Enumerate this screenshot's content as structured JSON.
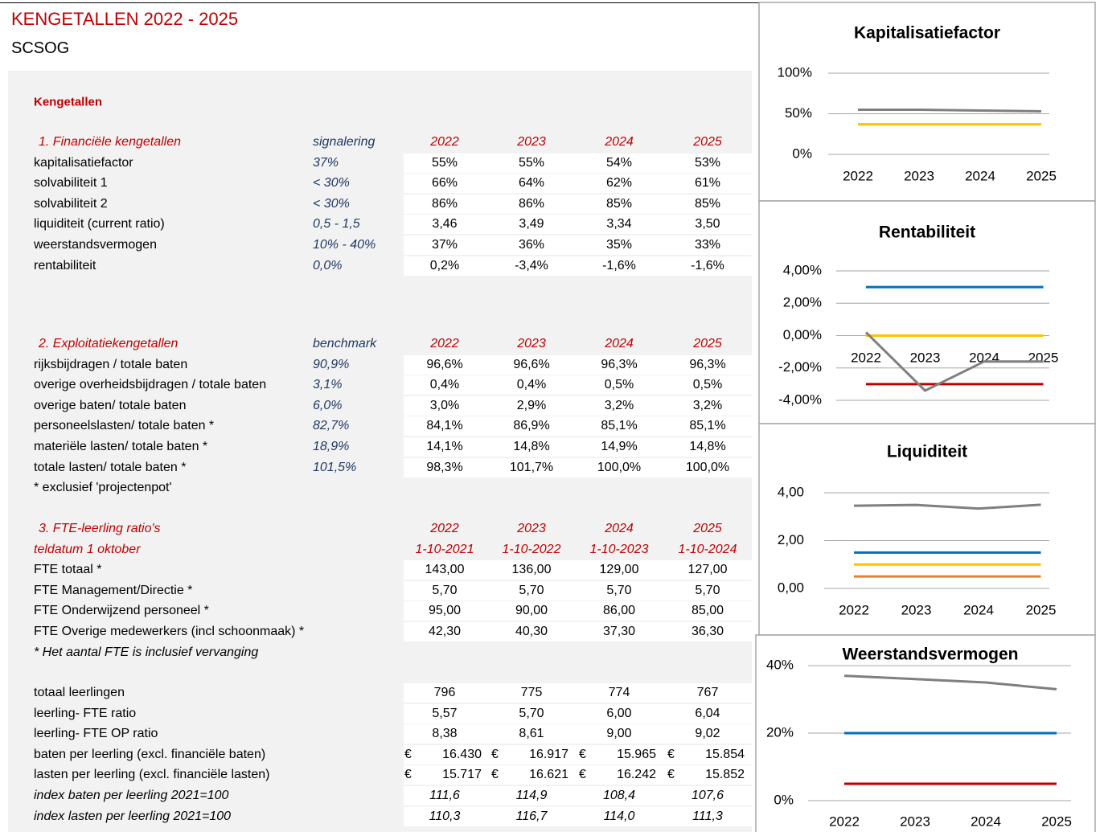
{
  "header": {
    "title": "KENGETALLEN  2022 - 2025",
    "subtitle": "SCSOG",
    "section_label": "Kengetallen"
  },
  "sections": [
    {
      "heading": "1. Financiële kengetallen",
      "column_label": "signalering",
      "years": [
        "2022",
        "2023",
        "2024",
        "2025"
      ],
      "rows": [
        {
          "label": "kapitalisatiefactor",
          "signal": "37%",
          "values": [
            "55%",
            "55%",
            "54%",
            "53%"
          ]
        },
        {
          "label": "solvabiliteit 1",
          "signal": "< 30%",
          "values": [
            "66%",
            "64%",
            "62%",
            "61%"
          ]
        },
        {
          "label": "solvabiliteit 2",
          "signal": "< 30%",
          "values": [
            "86%",
            "86%",
            "85%",
            "85%"
          ]
        },
        {
          "label": "liquiditeit (current ratio)",
          "signal": "0,5 - 1,5",
          "values": [
            "3,46",
            "3,49",
            "3,34",
            "3,50"
          ]
        },
        {
          "label": "weerstandsvermogen",
          "signal": "10% - 40%",
          "values": [
            "37%",
            "36%",
            "35%",
            "33%"
          ]
        },
        {
          "label": "rentabiliteit",
          "signal": "0,0%",
          "values": [
            "0,2%",
            "-3,4%",
            "-1,6%",
            "-1,6%"
          ]
        }
      ]
    },
    {
      "heading": "2. Exploitatiekengetallen",
      "column_label": "benchmark",
      "years": [
        "2022",
        "2023",
        "2024",
        "2025"
      ],
      "rows": [
        {
          "label": "rijksbijdragen / totale baten",
          "signal": "90,9%",
          "values": [
            "96,6%",
            "96,6%",
            "96,3%",
            "96,3%"
          ]
        },
        {
          "label": "overige overheidsbijdragen / totale baten",
          "signal": "3,1%",
          "values": [
            "0,4%",
            "0,4%",
            "0,5%",
            "0,5%"
          ]
        },
        {
          "label": "overige baten/ totale baten",
          "signal": "6,0%",
          "values": [
            "3,0%",
            "2,9%",
            "3,2%",
            "3,2%"
          ]
        },
        {
          "label": "personeelslasten/ totale baten *",
          "signal": "82,7%",
          "values": [
            "84,1%",
            "86,9%",
            "85,1%",
            "85,1%"
          ]
        },
        {
          "label": "materiële lasten/ totale baten *",
          "signal": "18,9%",
          "values": [
            "14,1%",
            "14,8%",
            "14,9%",
            "14,8%"
          ]
        },
        {
          "label": "totale lasten/ totale baten *",
          "signal": "101,5%",
          "values": [
            "98,3%",
            "101,7%",
            "100,0%",
            "100,0%"
          ]
        }
      ],
      "note": "* exclusief 'projectenpot'"
    },
    {
      "heading": "3. FTE-leerling ratio's",
      "subheading": "teldatum 1 oktober",
      "years": [
        "2022",
        "2023",
        "2024",
        "2025"
      ],
      "dates": [
        "1-10-2021",
        "1-10-2022",
        "1-10-2023",
        "1-10-2024"
      ],
      "rows": [
        {
          "label": "FTE totaal *",
          "values": [
            "143,00",
            "136,00",
            "129,00",
            "127,00"
          ]
        },
        {
          "label": "FTE Management/Directie *",
          "values": [
            "5,70",
            "5,70",
            "5,70",
            "5,70"
          ]
        },
        {
          "label": "FTE Onderwijzend personeel *",
          "values": [
            "95,00",
            "90,00",
            "86,00",
            "85,00"
          ]
        },
        {
          "label": "FTE Overige medewerkers (incl schoonmaak) *",
          "values": [
            "42,30",
            "40,30",
            "37,30",
            "36,30"
          ]
        }
      ],
      "note": "* Het aantal FTE is inclusief vervanging"
    },
    {
      "rows": [
        {
          "label": "totaal leerlingen",
          "values": [
            "796",
            "775",
            "774",
            "767"
          ]
        },
        {
          "label": "leerling- FTE ratio",
          "values": [
            "5,57",
            "5,70",
            "6,00",
            "6,04"
          ]
        },
        {
          "label": "leerling- FTE OP ratio",
          "values": [
            "8,38",
            "8,61",
            "9,00",
            "9,02"
          ]
        },
        {
          "label": "baten per leerling (excl. financiële baten)",
          "currency": "€",
          "values": [
            "16.430",
            "16.917",
            "15.965",
            "15.854"
          ]
        },
        {
          "label": "lasten per leerling (excl. financiële lasten)",
          "currency": "€",
          "values": [
            "15.717",
            "16.621",
            "16.242",
            "15.852"
          ]
        },
        {
          "label": "index baten per leerling 2021=100",
          "values": [
            "111,6",
            "114,9",
            "108,4",
            "107,6"
          ]
        },
        {
          "label": "index lasten per leerling 2021=100",
          "values": [
            "110,3",
            "116,7",
            "114,0",
            "111,3"
          ]
        }
      ]
    }
  ],
  "charts": [
    {
      "type": "line",
      "title": "Kapitalisatiefactor",
      "categories": [
        "2022",
        "2023",
        "2024",
        "2025"
      ],
      "ylim": [
        0,
        100
      ],
      "yticks": [
        {
          "value": 0,
          "label": "0%"
        },
        {
          "value": 50,
          "label": "50%"
        },
        {
          "value": 100,
          "label": "100%"
        }
      ],
      "series": [
        {
          "color": "#7f7f7f",
          "values": [
            55,
            55,
            54,
            53
          ]
        },
        {
          "color": "#ffc000",
          "values": [
            37,
            37,
            37,
            37
          ]
        }
      ]
    },
    {
      "type": "line",
      "title": "Rentabiliteit",
      "categories": [
        "2022",
        "2023",
        "2024",
        "2025"
      ],
      "ylim": [
        -4,
        4
      ],
      "yticks": [
        {
          "value": -4,
          "label": "-4,00%"
        },
        {
          "value": -2,
          "label": "-2,00%"
        },
        {
          "value": 0,
          "label": "0,00%"
        },
        {
          "value": 2,
          "label": "2,00%"
        },
        {
          "value": 4,
          "label": "4,00%"
        }
      ],
      "series": [
        {
          "color": "#0070c0",
          "values": [
            3,
            3,
            3,
            3
          ]
        },
        {
          "color": "#ffc000",
          "values": [
            0,
            0,
            0,
            0
          ]
        },
        {
          "color": "#c00000",
          "values": [
            -3,
            -3,
            -3,
            -3
          ]
        },
        {
          "color": "#7f7f7f",
          "values": [
            0.2,
            -3.4,
            -1.6,
            -1.6
          ]
        }
      ]
    },
    {
      "type": "line",
      "title": "Liquiditeit",
      "categories": [
        "2022",
        "2023",
        "2024",
        "2025"
      ],
      "ylim": [
        0,
        4
      ],
      "yticks": [
        {
          "value": 0,
          "label": "0,00"
        },
        {
          "value": 2,
          "label": "2,00"
        },
        {
          "value": 4,
          "label": "4,00"
        }
      ],
      "series": [
        {
          "color": "#7f7f7f",
          "values": [
            3.46,
            3.49,
            3.34,
            3.5
          ]
        },
        {
          "color": "#0070c0",
          "values": [
            1.5,
            1.5,
            1.5,
            1.5
          ]
        },
        {
          "color": "#ffc000",
          "values": [
            1,
            1,
            1,
            1
          ]
        },
        {
          "color": "#ed7d31",
          "values": [
            0.5,
            0.5,
            0.5,
            0.5
          ]
        }
      ]
    },
    {
      "type": "line",
      "title": "Weerstandsvermogen",
      "categories": [
        "2022",
        "2023",
        "2024",
        "2025"
      ],
      "ylim": [
        0,
        40
      ],
      "yticks": [
        {
          "value": 0,
          "label": "0%"
        },
        {
          "value": 20,
          "label": "20%"
        },
        {
          "value": 40,
          "label": "40%"
        }
      ],
      "series": [
        {
          "color": "#7f7f7f",
          "values": [
            37,
            36,
            35,
            33
          ]
        },
        {
          "color": "#0070c0",
          "values": [
            20,
            20,
            20,
            20
          ]
        },
        {
          "color": "#c00000",
          "values": [
            5,
            5,
            5,
            5
          ]
        }
      ]
    }
  ]
}
